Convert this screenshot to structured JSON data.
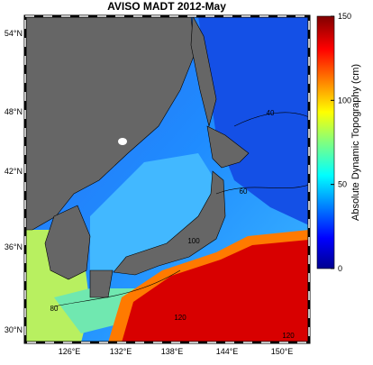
{
  "map": {
    "title": "AVISO MADT 2012-May",
    "lat_labels": [
      "54°N",
      "48°N",
      "42°N",
      "36°N",
      "30°N"
    ],
    "lon_labels": [
      "126°E",
      "132°E",
      "138°E",
      "144°E",
      "150°E"
    ],
    "contour_labels": [
      "40",
      "60",
      "80",
      "100",
      "120",
      "120"
    ],
    "colorbar": {
      "label": "Absolute Dynamic Topography (cm)",
      "lim": [
        0,
        150
      ],
      "ticks": [
        0,
        50,
        100,
        150
      ]
    }
  }
}
